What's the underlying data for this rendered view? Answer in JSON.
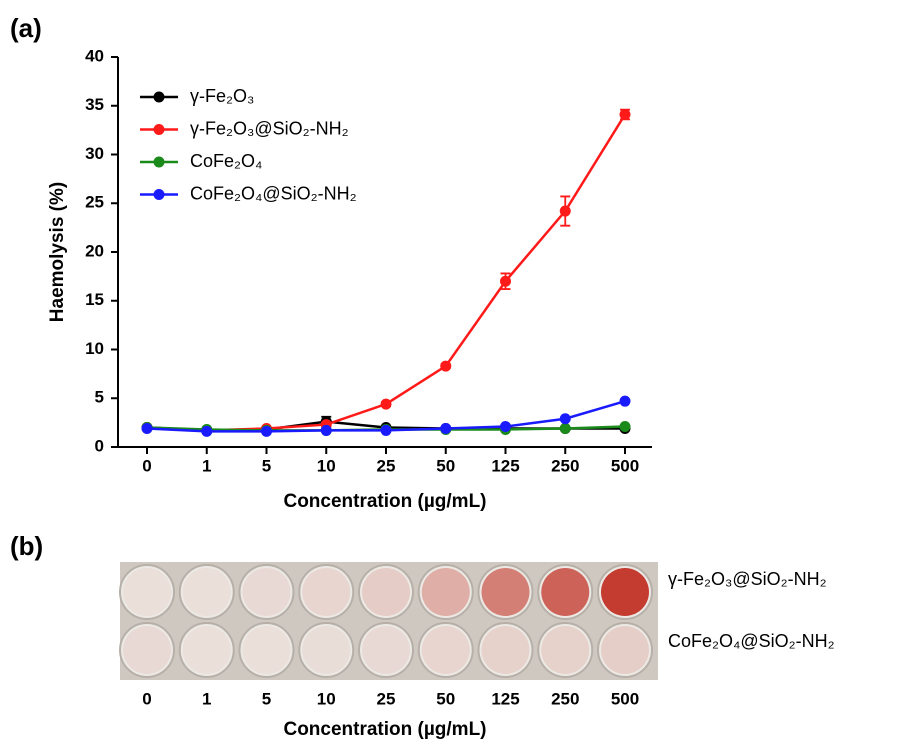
{
  "chart_data": {
    "type": "line",
    "panel_label": "(a)",
    "xlabel": "Concentration (µg/mL)",
    "ylabel": "Haemolysis (%)",
    "categories": [
      "0",
      "1",
      "5",
      "10",
      "25",
      "50",
      "125",
      "250",
      "500"
    ],
    "ylim": [
      0,
      40
    ],
    "yticks": [
      0,
      5,
      10,
      15,
      20,
      25,
      30,
      35,
      40
    ],
    "series": [
      {
        "name": "γ-Fe₂O₃",
        "color": "#000000",
        "values": [
          2.0,
          1.7,
          1.8,
          2.6,
          2.0,
          1.9,
          1.9,
          1.9,
          1.9
        ],
        "errors": [
          0.1,
          0.1,
          0.1,
          0.5,
          0.1,
          0.1,
          0.1,
          0.1,
          0.1
        ]
      },
      {
        "name": "γ-Fe₂O₃@SiO₂-NH₂",
        "color": "#ff1a1a",
        "values": [
          2.0,
          1.7,
          1.9,
          2.3,
          4.4,
          8.3,
          17.0,
          24.2,
          34.1
        ],
        "errors": [
          0.1,
          0.1,
          0.1,
          0.2,
          0.2,
          0.2,
          0.8,
          1.5,
          0.5
        ]
      },
      {
        "name": "CoFe₂O₄",
        "color": "#1a8a1a",
        "values": [
          2.0,
          1.8,
          1.7,
          1.7,
          1.8,
          1.8,
          1.8,
          1.9,
          2.1
        ]
      },
      {
        "name": "CoFe₂O₄@SiO₂-NH₂",
        "color": "#1a1aff",
        "values": [
          1.9,
          1.6,
          1.6,
          1.7,
          1.7,
          1.9,
          2.1,
          2.9,
          4.7
        ]
      }
    ]
  },
  "panel_b": {
    "panel_label": "(b)",
    "row_labels": [
      "γ-Fe₂O₃@SiO₂-NH₂",
      "CoFe₂O₄@SiO₂-NH₂"
    ],
    "categories": [
      "0",
      "1",
      "5",
      "10",
      "25",
      "50",
      "125",
      "250",
      "500"
    ],
    "xlabel": "Concentration (µg/mL)"
  }
}
